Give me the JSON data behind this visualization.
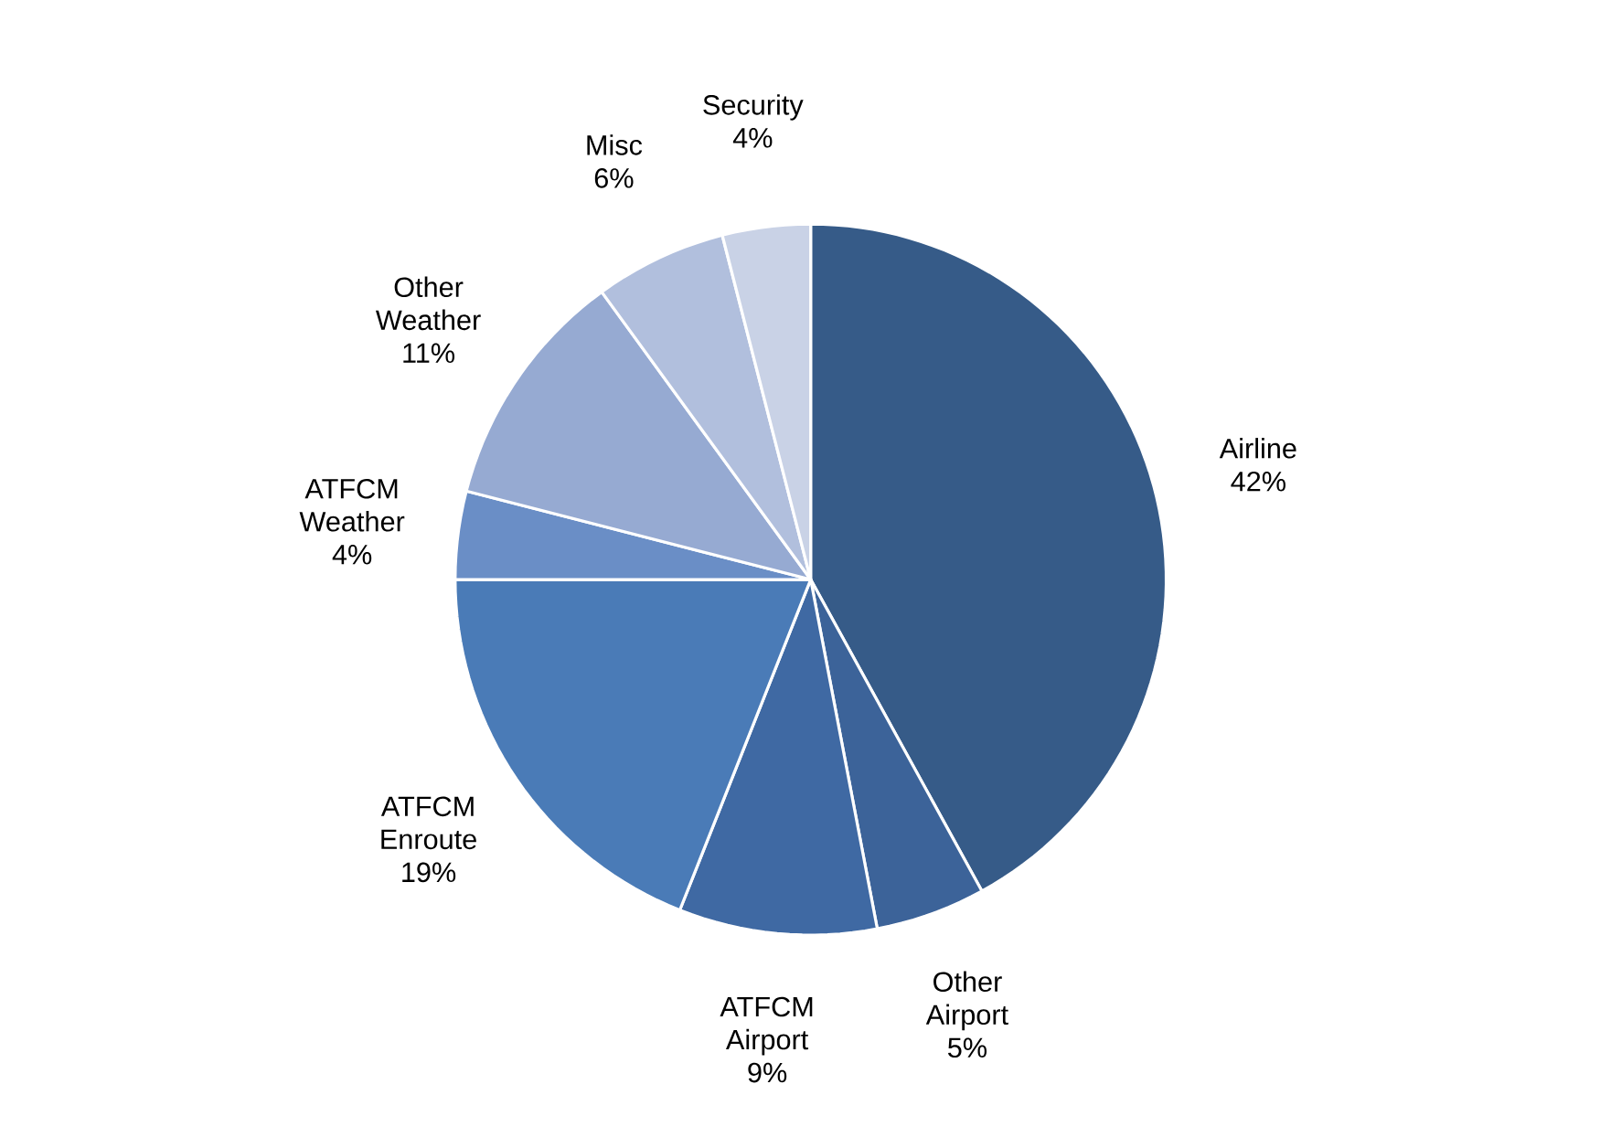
{
  "chart_data": {
    "type": "pie",
    "categories": [
      "Airline",
      "Other Airport",
      "ATFCM Airport",
      "ATFCM Enroute",
      "ATFCM Weather",
      "Other Weather",
      "Misc",
      "Security"
    ],
    "values": [
      42,
      5,
      9,
      19,
      4,
      11,
      6,
      4
    ],
    "value_labels": [
      "42%",
      "5%",
      "9%",
      "19%",
      "4%",
      "11%",
      "6%",
      "4%"
    ],
    "colors": [
      "#365b88",
      "#3c6399",
      "#3f69a3",
      "#4a7bb7",
      "#6a8ec6",
      "#96aad2",
      "#b1bfdd",
      "#c9d2e6"
    ]
  }
}
